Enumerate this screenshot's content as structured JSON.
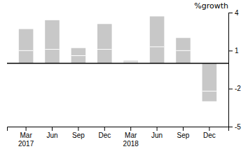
{
  "chart_data": {
    "type": "bar",
    "title": "%growth",
    "categories": [
      "Mar\n2017",
      "Jun",
      "Sep",
      "Dec",
      "Mar\n2018",
      "Jun",
      "Sep",
      "Dec"
    ],
    "values": [
      2.7,
      3.4,
      1.2,
      3.1,
      0.2,
      3.7,
      2.0,
      -3.0
    ],
    "divider_values": [
      1.0,
      1.1,
      0.6,
      1.1,
      0.1,
      1.3,
      1.0,
      -2.2
    ],
    "color": "#c8c8c8",
    "ylim": [
      -5,
      4
    ],
    "yticks": [
      -5,
      -2,
      1,
      4
    ],
    "grid": false
  }
}
